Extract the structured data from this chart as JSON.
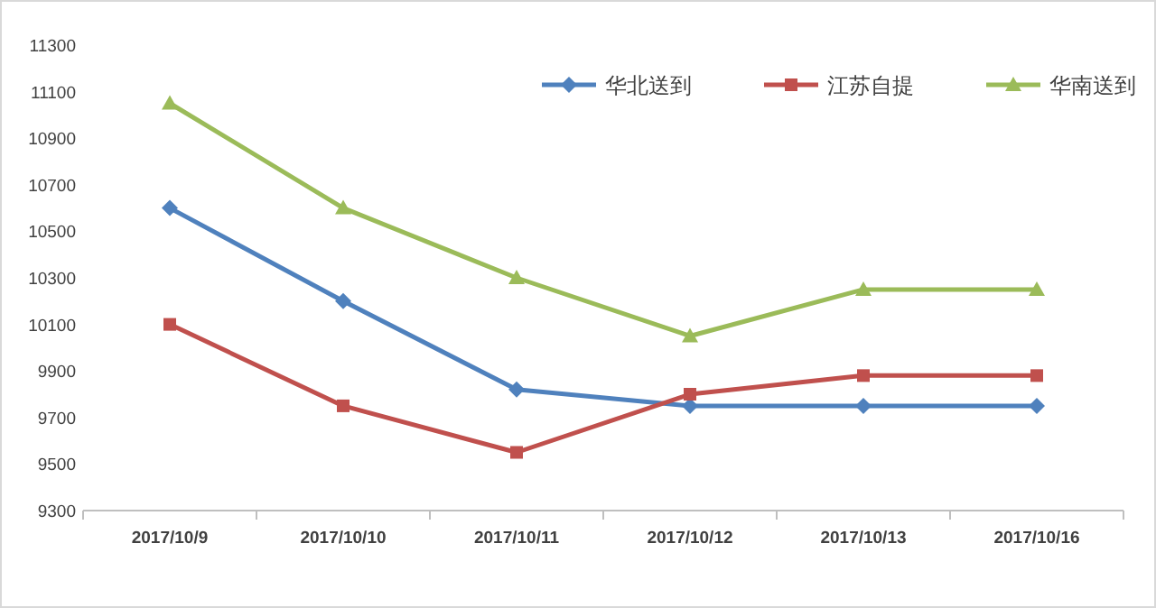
{
  "chart_data": {
    "type": "line",
    "categories": [
      "2017/10/9",
      "2017/10/10",
      "2017/10/11",
      "2017/10/12",
      "2017/10/13",
      "2017/10/16"
    ],
    "series": [
      {
        "name": "华北送到",
        "color": "#4f81bd",
        "marker": "diamond",
        "values": [
          10600,
          10200,
          9820,
          9750,
          9750,
          9750
        ]
      },
      {
        "name": "江苏自提",
        "color": "#c0504d",
        "marker": "square",
        "values": [
          10100,
          9750,
          9550,
          9800,
          9880,
          9880
        ]
      },
      {
        "name": "华南送到",
        "color": "#9bbb59",
        "marker": "triangle",
        "values": [
          11050,
          10600,
          10300,
          10050,
          10250,
          10250
        ]
      }
    ],
    "ylim": [
      9300,
      11300
    ],
    "yticks": [
      9300,
      9500,
      9700,
      9900,
      10100,
      10300,
      10500,
      10700,
      10900,
      11100,
      11300
    ],
    "grid": false,
    "legend": "top right",
    "line_style": "solid"
  }
}
